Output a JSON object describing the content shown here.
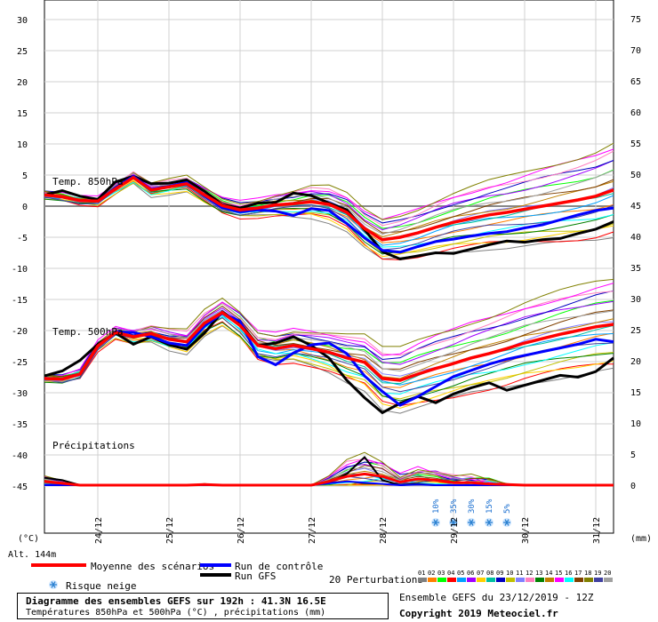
{
  "chart_data": {
    "type": "line",
    "left_axis_ticks": [
      30,
      25,
      20,
      15,
      10,
      5,
      0,
      -5,
      -10,
      -15,
      -20,
      -25,
      -30,
      -35,
      -40,
      -45
    ],
    "right_axis_ticks": [
      75,
      70,
      65,
      60,
      55,
      50,
      45,
      40,
      35,
      30,
      25,
      20,
      15,
      10,
      5,
      0
    ],
    "left_unit": "(°C)",
    "right_unit": "(mm)",
    "altitude": "Alt. 144m",
    "dates": [
      "24/12",
      "25/12",
      "26/12",
      "27/12",
      "28/12",
      "29/12",
      "30/12",
      "31/12"
    ],
    "section_labels": [
      "Temp. 850hPa",
      "Temp. 500hPa",
      "Précipitations"
    ],
    "x_hours": [
      0,
      6,
      12,
      18,
      24,
      30,
      36,
      42,
      48,
      54,
      60,
      66,
      72,
      78,
      84,
      90,
      96,
      102,
      108,
      114,
      120,
      126,
      132,
      138,
      144,
      150,
      156,
      162,
      168,
      174,
      180,
      186,
      192
    ],
    "series": [
      {
        "name": "Moyenne des scénarios",
        "color": "#ff0000",
        "t850": [
          1.8,
          1.5,
          0.9,
          0.8,
          2.8,
          4.6,
          2.6,
          3.1,
          3.6,
          1.8,
          0.1,
          -0.6,
          -0.3,
          0.2,
          0.4,
          0.7,
          0.3,
          -1.0,
          -3.6,
          -5.4,
          -5.0,
          -4.3,
          -3.4,
          -2.6,
          -2.0,
          -1.4,
          -1.0,
          -0.5,
          0.0,
          0.5,
          1.0,
          1.6,
          2.6
        ],
        "t500": [
          -27.7,
          -27.8,
          -27.0,
          -22.5,
          -20.3,
          -21.0,
          -20.5,
          -21.4,
          -21.8,
          -18.8,
          -17.1,
          -19.2,
          -22.4,
          -22.9,
          -22.4,
          -22.9,
          -23.5,
          -24.4,
          -25.1,
          -27.7,
          -28.0,
          -27.0,
          -26.1,
          -25.3,
          -24.4,
          -23.7,
          -22.9,
          -22.0,
          -21.3,
          -20.6,
          -20.0,
          -19.4,
          -19.0
        ],
        "precip": [
          0.6,
          0.3,
          0.0,
          0.0,
          0.0,
          0.0,
          0.0,
          0.0,
          0.0,
          0.1,
          0.0,
          0.0,
          0.0,
          0.0,
          0.0,
          0.0,
          0.6,
          1.4,
          1.8,
          1.4,
          0.5,
          1.0,
          0.8,
          0.4,
          0.4,
          0.2,
          0.1,
          0.0,
          0.0,
          0.0,
          0.0,
          0.0,
          0.0
        ]
      },
      {
        "name": "Run de contrôle",
        "color": "#0000ff",
        "t850": [
          1.8,
          1.5,
          0.9,
          0.8,
          3.0,
          4.8,
          2.7,
          3.2,
          3.8,
          1.6,
          -0.3,
          -0.9,
          -0.6,
          -0.8,
          -1.5,
          -0.4,
          -0.7,
          -2.8,
          -5.1,
          -7.1,
          -7.4,
          -6.5,
          -5.7,
          -5.3,
          -4.8,
          -4.4,
          -4.1,
          -3.5,
          -3.0,
          -2.2,
          -1.4,
          -0.7,
          -0.3
        ],
        "t500": [
          -27.7,
          -27.8,
          -27.0,
          -22.5,
          -20.2,
          -20.3,
          -21.0,
          -22.0,
          -22.4,
          -19.3,
          -17.2,
          -18.5,
          -24.2,
          -25.5,
          -23.6,
          -22.3,
          -22.0,
          -23.7,
          -27.3,
          -29.8,
          -32.0,
          -30.6,
          -29.0,
          -27.4,
          -26.4,
          -25.4,
          -24.6,
          -24.0,
          -23.4,
          -22.8,
          -22.2,
          -21.4,
          -21.8
        ],
        "precip": [
          0.0,
          0.0,
          0.0,
          0.0,
          0.0,
          0.0,
          0.0,
          0.0,
          0.0,
          0.0,
          0.0,
          0.0,
          0.0,
          0.0,
          0.0,
          0.0,
          0.3,
          0.6,
          0.4,
          0.2,
          0.0,
          0.1,
          0.0,
          0.0,
          0.0,
          0.0,
          0.0,
          0.0,
          0.0,
          0.0,
          0.0,
          0.0,
          0.0
        ]
      },
      {
        "name": "Run GFS",
        "color": "#000000",
        "t850": [
          1.8,
          2.5,
          1.6,
          1.1,
          3.9,
          4.8,
          3.6,
          3.7,
          4.2,
          2.4,
          0.2,
          -0.3,
          0.5,
          0.6,
          2.1,
          1.7,
          0.5,
          -0.6,
          -3.8,
          -7.3,
          -8.5,
          -8.0,
          -7.5,
          -7.6,
          -6.9,
          -6.2,
          -5.6,
          -5.8,
          -5.4,
          -5.2,
          -4.4,
          -3.7,
          -2.5
        ],
        "t500": [
          -27.3,
          -26.5,
          -24.8,
          -22.2,
          -20.4,
          -22.2,
          -21.0,
          -22.3,
          -23.0,
          -20.4,
          -17.0,
          -18.8,
          -22.4,
          -22.0,
          -21.0,
          -22.4,
          -24.4,
          -28.0,
          -30.8,
          -33.2,
          -31.7,
          -30.6,
          -31.6,
          -30.2,
          -29.2,
          -28.4,
          -29.6,
          -28.8,
          -28.0,
          -27.2,
          -27.5,
          -26.6,
          -24.4
        ],
        "precip": [
          1.2,
          0.8,
          0.0,
          0.0,
          0.0,
          0.0,
          0.0,
          0.0,
          0.0,
          0.0,
          0.0,
          0.0,
          0.0,
          0.0,
          0.0,
          0.0,
          0.4,
          1.8,
          4.5,
          0.8,
          0.0,
          0.2,
          0.0,
          0.0,
          0.0,
          0.0,
          0.0,
          0.0,
          0.0,
          0.0,
          0.0,
          0.0,
          0.0
        ]
      }
    ],
    "perturbations": {
      "count": 20,
      "colors": [
        "#7f7f7f",
        "#ff7f00",
        "#00ff00",
        "#ff0000",
        "#00a0ff",
        "#a000ff",
        "#ffd000",
        "#00c0a0",
        "#0000c0",
        "#c0c000",
        "#8080ff",
        "#ff80c0",
        "#008000",
        "#c08000",
        "#ff00ff",
        "#00ffff",
        "#804000",
        "#808000",
        "#4040a0",
        "#a0a0a0"
      ],
      "t850_spread": [
        0.6,
        0.6,
        0.6,
        0.7,
        0.8,
        1.0,
        1.1,
        1.2,
        1.3,
        1.4,
        1.5,
        1.6,
        1.8,
        2.1,
        2.5,
        3.0,
        3.4,
        3.6,
        3.8,
        4.2,
        4.6,
        5.0,
        5.4,
        5.8,
        6.2,
        6.6,
        7.0,
        7.4,
        7.8,
        8.2,
        8.6,
        9.0,
        9.4
      ],
      "t500_spread": [
        0.3,
        0.4,
        0.5,
        0.7,
        0.9,
        1.2,
        1.4,
        1.8,
        2.0,
        2.2,
        2.5,
        2.6,
        2.8,
        3.0,
        3.3,
        3.6,
        4.0,
        4.6,
        5.2,
        5.8,
        6.3,
        6.7,
        7.0,
        7.2,
        7.4,
        7.6,
        7.8,
        8.0,
        8.2,
        8.4,
        8.6,
        8.8,
        9.0
      ]
    },
    "snow_risk": [
      {
        "date": "29/12",
        "pct": "10%",
        "hour": 132
      },
      {
        "date": "29/12",
        "pct": "35%",
        "hour": 138
      },
      {
        "date": "29/12",
        "pct": "30%",
        "hour": 144
      },
      {
        "date": "30/12",
        "pct": "15%",
        "hour": 150
      },
      {
        "date": "30/12",
        "pct": "5%",
        "hour": 156
      }
    ],
    "grid": true
  },
  "legend": {
    "mean": "Moyenne des scénarios",
    "control": "Run de contrôle",
    "gfs": "Run GFS",
    "snow": "Risque neige",
    "perturbations": "20 Perturbations",
    "perturbation_numbers": [
      "01",
      "02",
      "03",
      "04",
      "05",
      "06",
      "07",
      "08",
      "09",
      "10",
      "11",
      "12",
      "13",
      "14",
      "15",
      "16",
      "17",
      "18",
      "19",
      "20"
    ]
  },
  "info": {
    "title": "Diagramme des ensembles GEFS sur 192h : 41.3N 16.5E",
    "subtitle": "Températures 850hPa et 500hPa (°C) , précipitations (mm)",
    "run": "Ensemble GEFS du 23/12/2019 - 12Z",
    "copyright": "Copyright 2019 Meteociel.fr"
  }
}
